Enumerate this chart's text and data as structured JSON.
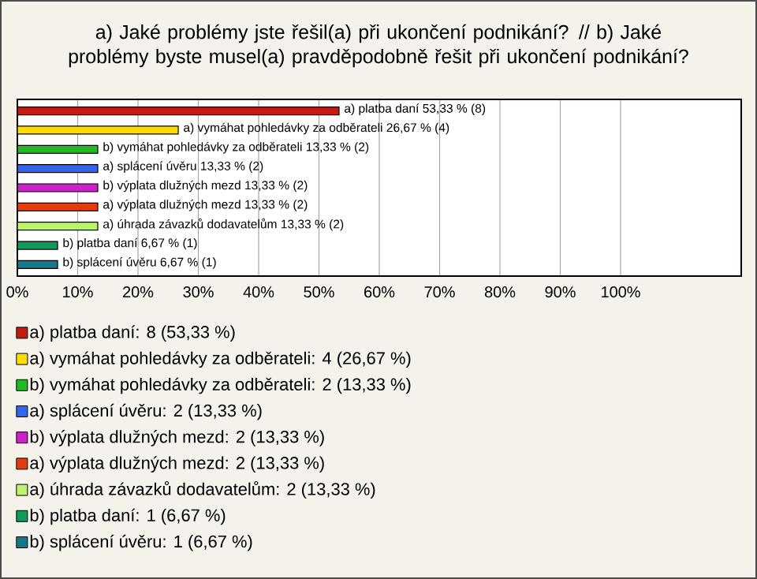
{
  "chart_data": {
    "type": "bar",
    "orientation": "horizontal",
    "title": "a) Jaké problémy jste řešil(a) při ukončení podnikání? // b) Jaké problémy byste musel(a) pravděpodobně řešit při ukončení podnikání?",
    "categories": [
      null,
      null,
      null,
      null,
      null,
      null,
      null,
      null,
      null
    ],
    "series": [
      {
        "name": "a) platba daní: 8 (53,33 %)",
        "color": "#c41a10",
        "values": [
          53.33,
          null,
          null,
          null,
          null,
          null,
          null,
          null,
          null
        ],
        "value_labels": [
          "a) platba daní 53,33 % (8)",
          null,
          null,
          null,
          null,
          null,
          null,
          null,
          null
        ]
      },
      {
        "name": "a) vymáhat pohledávky za odběrateli: 4 (26,67 %)",
        "color": "#ffdd00",
        "values": [
          null,
          26.67,
          null,
          null,
          null,
          null,
          null,
          null,
          null
        ],
        "value_labels": [
          null,
          "a) vymáhat pohledávky za odběrateli 26,67 % (4)",
          null,
          null,
          null,
          null,
          null,
          null,
          null
        ]
      },
      {
        "name": "b) vymáhat pohledávky za odběrateli: 2 (13,33 %)",
        "color": "#1fbb1f",
        "values": [
          null,
          null,
          13.33,
          null,
          null,
          null,
          null,
          null,
          null
        ],
        "value_labels": [
          null,
          null,
          "b) vymáhat pohledávky za odběrateli 13,33 % (2)",
          null,
          null,
          null,
          null,
          null,
          null
        ]
      },
      {
        "name": "a) splácení úvěru: 2 (13,33 %)",
        "color": "#3366ee",
        "values": [
          null,
          null,
          null,
          13.33,
          null,
          null,
          null,
          null,
          null
        ],
        "value_labels": [
          null,
          null,
          null,
          "a) splácení úvěru 13,33 % (2)",
          null,
          null,
          null,
          null,
          null
        ]
      },
      {
        "name": "b) výplata dlužných mezd: 2 (13,33 %)",
        "color": "#cc22cc",
        "values": [
          null,
          null,
          null,
          null,
          13.33,
          null,
          null,
          null,
          null
        ],
        "value_labels": [
          null,
          null,
          null,
          null,
          "b) výplata dlužných mezd 13,33 % (2)",
          null,
          null,
          null,
          null
        ]
      },
      {
        "name": "a) výplata dlužných mezd: 2 (13,33 %)",
        "color": "#e63c0c",
        "values": [
          null,
          null,
          null,
          null,
          null,
          13.33,
          null,
          null,
          null
        ],
        "value_labels": [
          null,
          null,
          null,
          null,
          null,
          "a) výplata dlužných mezd 13,33 % (2)",
          null,
          null,
          null
        ]
      },
      {
        "name": "a) úhrada závazků dodavatelům: 2 (13,33 %)",
        "color": "#bbf56a",
        "values": [
          null,
          null,
          null,
          null,
          null,
          null,
          13.33,
          null,
          null
        ],
        "value_labels": [
          null,
          null,
          null,
          null,
          null,
          null,
          "a) úhrada závazků dodavatelům 13,33 % (2)",
          null,
          null
        ]
      },
      {
        "name": "b) platba daní: 1 (6,67 %)",
        "color": "#129a5a",
        "values": [
          null,
          null,
          null,
          null,
          null,
          null,
          null,
          6.67,
          null
        ],
        "value_labels": [
          null,
          null,
          null,
          null,
          null,
          null,
          null,
          "b) platba daní 6,67 % (1)",
          null
        ]
      },
      {
        "name": "b) splácení úvěru: 1 (6,67 %)",
        "color": "#137a8c",
        "values": [
          null,
          null,
          null,
          null,
          null,
          null,
          null,
          null,
          6.67
        ],
        "value_labels": [
          null,
          null,
          null,
          null,
          null,
          null,
          null,
          null,
          "b) splácení úvěru 6,67 % (1)"
        ]
      }
    ],
    "xlim": [
      0,
      120
    ],
    "xticks": [
      {
        "value": 0,
        "label": "0%"
      },
      {
        "value": 10,
        "label": "10%"
      },
      {
        "value": 20,
        "label": "20%"
      },
      {
        "value": 30,
        "label": "30%"
      },
      {
        "value": 40,
        "label": "40%"
      },
      {
        "value": 50,
        "label": "50%"
      },
      {
        "value": 60,
        "label": "60%"
      },
      {
        "value": 70,
        "label": "70%"
      },
      {
        "value": 80,
        "label": "80%"
      },
      {
        "value": 90,
        "label": "90%"
      },
      {
        "value": 100,
        "label": "100%"
      }
    ],
    "grid": "x",
    "legend": "bottom"
  }
}
